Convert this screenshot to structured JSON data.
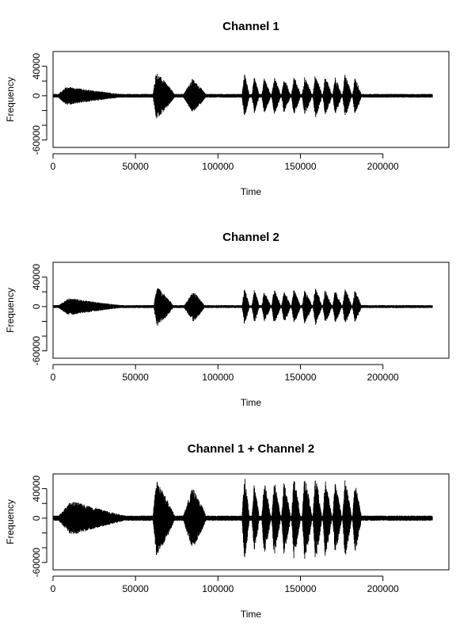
{
  "chart_data": [
    {
      "type": "line",
      "title": "Channel 1",
      "xlabel": "Time",
      "ylabel": "Frequency",
      "xlim": [
        0,
        240000
      ],
      "ylim": [
        -70000,
        60000
      ],
      "xticks": [
        0,
        50000,
        100000,
        150000,
        200000
      ],
      "xtick_labels": [
        "0",
        "50000",
        "100000",
        "150000",
        "200000"
      ],
      "yticks": [
        -60000,
        -40000,
        -20000,
        0,
        20000,
        40000
      ],
      "ytick_labels": [
        "-60000",
        "",
        "",
        "0",
        "",
        "40000"
      ],
      "grid": false,
      "series": [
        {
          "x_start": 0,
          "x_end": 230000,
          "samples": 2300,
          "envelope": [
            {
              "kind": "segment",
              "start": 0,
              "end": 230000,
              "amp": 2500
            },
            {
              "kind": "swell",
              "start": 2000,
              "end": 52000,
              "peak_at": 10000,
              "amp": 12000
            },
            {
              "kind": "burst",
              "start": 60500,
              "end": 74000,
              "peak_at": 62500,
              "amp": 32000
            },
            {
              "kind": "burst",
              "start": 78500,
              "end": 93000,
              "peak_at": 84500,
              "amp": 23000
            },
            {
              "kind": "burst",
              "start": 114500,
              "end": 119000,
              "peak_at": 116000,
              "amp": 30000
            },
            {
              "kind": "burst",
              "start": 120500,
              "end": 125000,
              "peak_at": 122000,
              "amp": 25000
            },
            {
              "kind": "burst",
              "start": 126500,
              "end": 132000,
              "peak_at": 128000,
              "amp": 24000
            },
            {
              "kind": "burst",
              "start": 132500,
              "end": 138000,
              "peak_at": 134000,
              "amp": 26000
            },
            {
              "kind": "burst",
              "start": 138500,
              "end": 144000,
              "peak_at": 140000,
              "amp": 24000
            },
            {
              "kind": "burst",
              "start": 144500,
              "end": 150000,
              "peak_at": 146000,
              "amp": 27000
            },
            {
              "kind": "burst",
              "start": 151000,
              "end": 157000,
              "peak_at": 152500,
              "amp": 26000
            },
            {
              "kind": "burst",
              "start": 157500,
              "end": 163000,
              "peak_at": 159000,
              "amp": 31000
            },
            {
              "kind": "burst",
              "start": 163500,
              "end": 169000,
              "peak_at": 165000,
              "amp": 27000
            },
            {
              "kind": "burst",
              "start": 169500,
              "end": 175000,
              "peak_at": 171000,
              "amp": 25000
            },
            {
              "kind": "burst",
              "start": 175500,
              "end": 181000,
              "peak_at": 177000,
              "amp": 30000
            },
            {
              "kind": "burst",
              "start": 181500,
              "end": 187000,
              "peak_at": 183000,
              "amp": 25000
            }
          ]
        }
      ]
    },
    {
      "type": "line",
      "title": "Channel 2",
      "xlabel": "Time",
      "ylabel": "Frequency",
      "xlim": [
        0,
        240000
      ],
      "ylim": [
        -70000,
        60000
      ],
      "xticks": [
        0,
        50000,
        100000,
        150000,
        200000
      ],
      "xtick_labels": [
        "0",
        "50000",
        "100000",
        "150000",
        "200000"
      ],
      "yticks": [
        -60000,
        -40000,
        -20000,
        0,
        20000,
        40000
      ],
      "ytick_labels": [
        "-60000",
        "",
        "",
        "0",
        "",
        "40000"
      ],
      "grid": false,
      "series": [
        {
          "x_start": 0,
          "x_end": 230000,
          "samples": 2300,
          "envelope": [
            {
              "kind": "segment",
              "start": 0,
              "end": 230000,
              "amp": 2000
            },
            {
              "kind": "swell",
              "start": 2000,
              "end": 50000,
              "peak_at": 12000,
              "amp": 11000
            },
            {
              "kind": "burst",
              "start": 61000,
              "end": 73000,
              "peak_at": 63000,
              "amp": 27000
            },
            {
              "kind": "burst",
              "start": 79000,
              "end": 92000,
              "peak_at": 85000,
              "amp": 21000
            },
            {
              "kind": "burst",
              "start": 114500,
              "end": 119000,
              "peak_at": 116000,
              "amp": 25000
            },
            {
              "kind": "burst",
              "start": 120500,
              "end": 125000,
              "peak_at": 122000,
              "amp": 23000
            },
            {
              "kind": "burst",
              "start": 126500,
              "end": 132000,
              "peak_at": 128000,
              "amp": 21000
            },
            {
              "kind": "burst",
              "start": 132500,
              "end": 138000,
              "peak_at": 134000,
              "amp": 24000
            },
            {
              "kind": "burst",
              "start": 138500,
              "end": 144000,
              "peak_at": 140000,
              "amp": 22000
            },
            {
              "kind": "burst",
              "start": 144500,
              "end": 150000,
              "peak_at": 146000,
              "amp": 24000
            },
            {
              "kind": "burst",
              "start": 151000,
              "end": 157000,
              "peak_at": 152500,
              "amp": 23000
            },
            {
              "kind": "burst",
              "start": 157500,
              "end": 163000,
              "peak_at": 159000,
              "amp": 26000
            },
            {
              "kind": "burst",
              "start": 163500,
              "end": 169000,
              "peak_at": 165000,
              "amp": 23000
            },
            {
              "kind": "burst",
              "start": 169500,
              "end": 175000,
              "peak_at": 171000,
              "amp": 22000
            },
            {
              "kind": "burst",
              "start": 175500,
              "end": 181000,
              "peak_at": 177000,
              "amp": 25000
            },
            {
              "kind": "burst",
              "start": 181500,
              "end": 187000,
              "peak_at": 183000,
              "amp": 22000
            }
          ]
        }
      ]
    },
    {
      "type": "line",
      "title": "Channel 1 + Channel 2",
      "xlabel": "Time",
      "ylabel": "Frequency",
      "xlim": [
        0,
        240000
      ],
      "ylim": [
        -70000,
        60000
      ],
      "xticks": [
        0,
        50000,
        100000,
        150000,
        200000
      ],
      "xtick_labels": [
        "0",
        "50000",
        "100000",
        "150000",
        "200000"
      ],
      "yticks": [
        -60000,
        -40000,
        -20000,
        0,
        20000,
        40000
      ],
      "ytick_labels": [
        "-60000",
        "",
        "",
        "0",
        "",
        "40000"
      ],
      "grid": false,
      "series": [
        {
          "x_start": 0,
          "x_end": 230000,
          "samples": 2300,
          "envelope": [
            {
              "kind": "segment",
              "start": 0,
              "end": 230000,
              "amp": 3500
            },
            {
              "kind": "swell",
              "start": 2000,
              "end": 52000,
              "peak_at": 14000,
              "amp": 22000
            },
            {
              "kind": "burst",
              "start": 60500,
              "end": 74000,
              "peak_at": 62500,
              "amp": 52000
            },
            {
              "kind": "burst",
              "start": 78500,
              "end": 93000,
              "peak_at": 84500,
              "amp": 42000
            },
            {
              "kind": "burst",
              "start": 114500,
              "end": 119000,
              "peak_at": 116000,
              "amp": 60000
            },
            {
              "kind": "burst",
              "start": 120500,
              "end": 125000,
              "peak_at": 122000,
              "amp": 48000
            },
            {
              "kind": "burst",
              "start": 126500,
              "end": 132000,
              "peak_at": 128000,
              "amp": 50000
            },
            {
              "kind": "burst",
              "start": 132500,
              "end": 138000,
              "peak_at": 134000,
              "amp": 52000
            },
            {
              "kind": "burst",
              "start": 138500,
              "end": 144000,
              "peak_at": 140000,
              "amp": 50000
            },
            {
              "kind": "burst",
              "start": 144500,
              "end": 150000,
              "peak_at": 146000,
              "amp": 56000
            },
            {
              "kind": "burst",
              "start": 151000,
              "end": 157000,
              "peak_at": 152500,
              "amp": 58000
            },
            {
              "kind": "burst",
              "start": 157500,
              "end": 163000,
              "peak_at": 159000,
              "amp": 60000
            },
            {
              "kind": "burst",
              "start": 163500,
              "end": 169000,
              "peak_at": 165000,
              "amp": 52000
            },
            {
              "kind": "burst",
              "start": 169500,
              "end": 175000,
              "peak_at": 171000,
              "amp": 50000
            },
            {
              "kind": "burst",
              "start": 175500,
              "end": 181000,
              "peak_at": 177000,
              "amp": 55000
            },
            {
              "kind": "burst",
              "start": 181500,
              "end": 187000,
              "peak_at": 183000,
              "amp": 48000
            }
          ]
        }
      ]
    }
  ],
  "colors": {
    "line": "#000000",
    "axis": "#000000",
    "background": "#ffffff"
  }
}
